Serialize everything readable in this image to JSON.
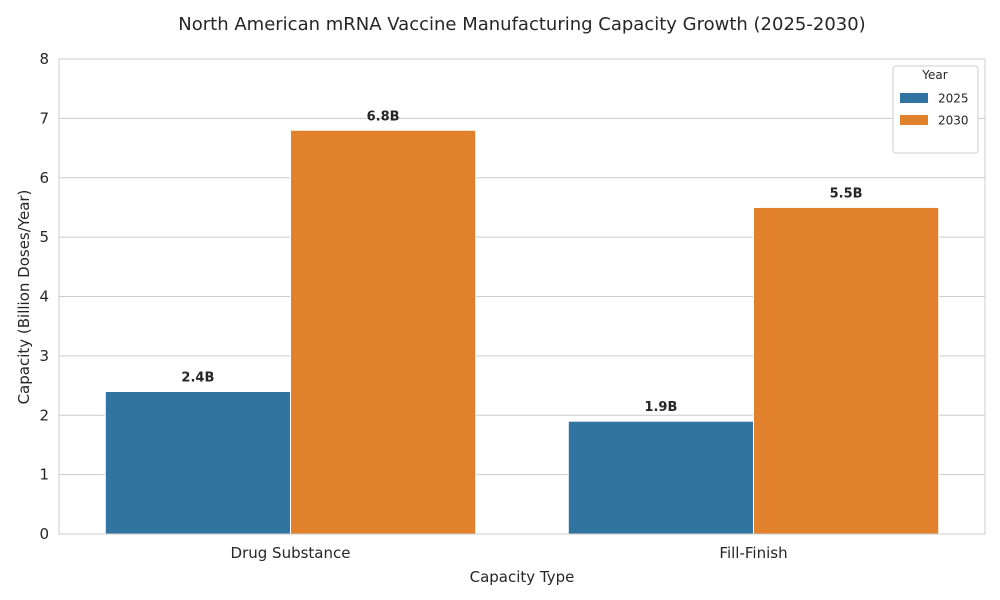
{
  "chart_data": {
    "type": "bar",
    "title": "North American mRNA Vaccine Manufacturing Capacity Growth (2025-2030)",
    "xlabel": "Capacity Type",
    "ylabel": "Capacity (Billion Doses/Year)",
    "categories": [
      "Drug Substance",
      "Fill-Finish"
    ],
    "series": [
      {
        "name": "2025",
        "values": [
          2.4,
          1.9
        ],
        "labels": [
          "2.4B",
          "1.9B"
        ],
        "color": "#3274a1"
      },
      {
        "name": "2030",
        "values": [
          6.8,
          5.5
        ],
        "labels": [
          "6.8B",
          "5.5B"
        ],
        "color": "#e1812c"
      }
    ],
    "ylim": [
      0,
      8
    ],
    "yticks": [
      "0",
      "1",
      "2",
      "3",
      "4",
      "5",
      "6",
      "7",
      "8"
    ],
    "grid": "horizontal",
    "legend": {
      "title": "Year",
      "position": "top-right"
    }
  }
}
